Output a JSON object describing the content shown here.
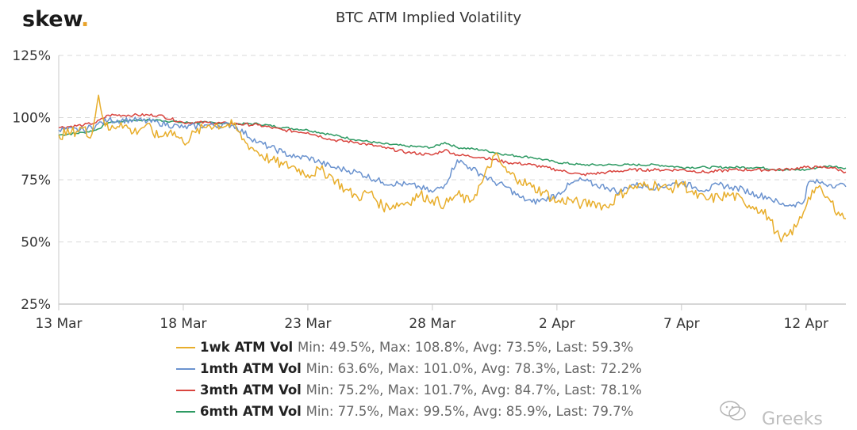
{
  "brand": {
    "name": "skew",
    "dot": ".",
    "dot_color": "#e8a32b"
  },
  "watermark": {
    "text": "Greeks",
    "icon": "wechat-icon"
  },
  "colors": {
    "1wk": "#e8ae2c",
    "1mth": "#6b93cf",
    "3mth": "#d9453f",
    "6mth": "#2e9a63"
  },
  "chart_data": {
    "type": "line",
    "title": "BTC ATM Implied Volatility",
    "xlabel": "",
    "ylabel": "",
    "x_ticks": [
      "13 Mar",
      "18 Mar",
      "23 Mar",
      "28 Mar",
      "2 Apr",
      "7 Apr",
      "12 Apr"
    ],
    "y_ticks": [
      "25%",
      "50%",
      "75%",
      "100%",
      "125%"
    ],
    "ylim": [
      25,
      125
    ],
    "xlim": [
      0,
      30.1
    ],
    "grid": true,
    "legend_position": "bottom",
    "series": [
      {
        "name": "1wk ATM Vol",
        "stats": "Min: 49.5%, Max: 108.8%, Avg: 73.5%, Last: 59.3%",
        "color": "#e8ae2c",
        "points": [
          [
            0,
            93
          ],
          [
            0.5,
            94
          ],
          [
            1,
            96
          ],
          [
            1.2,
            92
          ],
          [
            1.4,
            97
          ],
          [
            1.6,
            109
          ],
          [
            1.8,
            99
          ],
          [
            2,
            95
          ],
          [
            2.5,
            98
          ],
          [
            3,
            94
          ],
          [
            3.5,
            97
          ],
          [
            4,
            92
          ],
          [
            4.5,
            95
          ],
          [
            5,
            90
          ],
          [
            5.5,
            94
          ],
          [
            6,
            97
          ],
          [
            7,
            97
          ],
          [
            7.5,
            90
          ],
          [
            8,
            86
          ],
          [
            8.5,
            83
          ],
          [
            9,
            81
          ],
          [
            9.5,
            80
          ],
          [
            10,
            77
          ],
          [
            10.5,
            79
          ],
          [
            11,
            76
          ],
          [
            11.5,
            71
          ],
          [
            12,
            68
          ],
          [
            12.5,
            70
          ],
          [
            13,
            64
          ],
          [
            14,
            66
          ],
          [
            14.5,
            69
          ],
          [
            15,
            67
          ],
          [
            15.5,
            65
          ],
          [
            16,
            69
          ],
          [
            16.5,
            66
          ],
          [
            17,
            74
          ],
          [
            17.5,
            85
          ],
          [
            18,
            78
          ],
          [
            18.5,
            75
          ],
          [
            19,
            72
          ],
          [
            19.5,
            70
          ],
          [
            20,
            66
          ],
          [
            20.5,
            67
          ],
          [
            21,
            65
          ],
          [
            21.5,
            66
          ],
          [
            22,
            64
          ],
          [
            22.5,
            69
          ],
          [
            23,
            72
          ],
          [
            24,
            73
          ],
          [
            24.5,
            71
          ],
          [
            25,
            74
          ],
          [
            25.5,
            69
          ],
          [
            26,
            67
          ],
          [
            26.5,
            68
          ],
          [
            27,
            69
          ],
          [
            27.5,
            66
          ],
          [
            28,
            64
          ],
          [
            28.5,
            60
          ],
          [
            28.8,
            54
          ],
          [
            29,
            50
          ],
          [
            29.3,
            53
          ],
          [
            29.6,
            56
          ],
          [
            29.9,
            62
          ],
          [
            30.1,
            68
          ],
          [
            30.4,
            72
          ],
          [
            30.7,
            69
          ],
          [
            31,
            66
          ],
          [
            31.3,
            62
          ],
          [
            31.6,
            59.3
          ]
        ]
      },
      {
        "name": "1mth ATM Vol",
        "stats": "Min: 63.6%, Max: 101.0%, Avg: 78.3%, Last: 72.2%",
        "color": "#6b93cf",
        "points": [
          [
            0,
            95
          ],
          [
            1,
            95
          ],
          [
            1.5,
            97
          ],
          [
            2,
            99
          ],
          [
            3,
            99
          ],
          [
            4,
            98
          ],
          [
            5,
            96
          ],
          [
            6,
            97
          ],
          [
            7,
            97
          ],
          [
            8,
            90
          ],
          [
            8.5,
            88
          ],
          [
            9,
            86
          ],
          [
            9.5,
            84
          ],
          [
            10,
            84
          ],
          [
            10.5,
            82
          ],
          [
            11,
            80
          ],
          [
            11.5,
            79
          ],
          [
            12,
            78
          ],
          [
            13,
            74
          ],
          [
            14,
            73
          ],
          [
            14.5,
            72
          ],
          [
            15,
            70
          ],
          [
            15.5,
            73
          ],
          [
            16,
            83
          ],
          [
            16.5,
            80
          ],
          [
            17,
            77
          ],
          [
            17.5,
            74
          ],
          [
            18,
            72
          ],
          [
            18.5,
            68
          ],
          [
            19,
            66
          ],
          [
            19.5,
            67
          ],
          [
            20,
            69
          ],
          [
            20.5,
            73
          ],
          [
            21,
            75
          ],
          [
            21.5,
            73
          ],
          [
            22,
            72
          ],
          [
            22.5,
            70
          ],
          [
            23,
            73
          ],
          [
            24,
            72
          ],
          [
            24.5,
            73
          ],
          [
            25,
            74
          ],
          [
            25.5,
            72
          ],
          [
            26,
            71
          ],
          [
            26.5,
            73
          ],
          [
            27,
            72
          ],
          [
            27.5,
            71
          ],
          [
            28,
            69
          ],
          [
            28.5,
            68
          ],
          [
            29,
            65
          ],
          [
            29.5,
            65
          ],
          [
            29.9,
            66
          ],
          [
            30.1,
            74
          ],
          [
            30.5,
            74
          ],
          [
            31,
            73
          ],
          [
            31.3,
            73
          ],
          [
            31.6,
            72.2
          ]
        ]
      },
      {
        "name": "3mth ATM Vol",
        "stats": "Min: 75.2%, Max: 101.7%, Avg: 84.7%, Last: 78.1%",
        "color": "#d9453f",
        "points": [
          [
            0,
            96
          ],
          [
            1,
            97
          ],
          [
            1.5,
            98
          ],
          [
            2,
            101
          ],
          [
            3,
            101
          ],
          [
            4,
            101
          ],
          [
            5,
            98
          ],
          [
            6,
            98
          ],
          [
            7,
            97.5
          ],
          [
            8,
            97
          ],
          [
            9,
            95
          ],
          [
            10,
            94
          ],
          [
            11,
            91
          ],
          [
            12,
            90
          ],
          [
            13,
            88
          ],
          [
            14,
            86
          ],
          [
            15,
            85
          ],
          [
            15.5,
            87
          ],
          [
            16,
            85
          ],
          [
            17,
            84
          ],
          [
            18,
            82
          ],
          [
            19,
            81
          ],
          [
            20,
            79
          ],
          [
            21,
            77
          ],
          [
            22,
            78
          ],
          [
            23,
            79
          ],
          [
            24,
            79
          ],
          [
            25,
            79
          ],
          [
            26,
            78
          ],
          [
            27,
            79
          ],
          [
            28,
            79
          ],
          [
            29,
            79
          ],
          [
            30,
            80
          ],
          [
            30.5,
            80
          ],
          [
            31,
            80
          ],
          [
            31.6,
            78.1
          ]
        ]
      },
      {
        "name": "6mth ATM Vol",
        "stats": "Min: 77.5%, Max: 99.5%, Avg: 85.9%, Last: 79.7%",
        "color": "#2e9a63",
        "points": [
          [
            0,
            93
          ],
          [
            1,
            94
          ],
          [
            1.5,
            95
          ],
          [
            2,
            98
          ],
          [
            3,
            99
          ],
          [
            4,
            99
          ],
          [
            5,
            98
          ],
          [
            6,
            98
          ],
          [
            7,
            97.5
          ],
          [
            8,
            97.5
          ],
          [
            9,
            96
          ],
          [
            10,
            95
          ],
          [
            11,
            93
          ],
          [
            12,
            91
          ],
          [
            13,
            89.5
          ],
          [
            14,
            88.5
          ],
          [
            15,
            88
          ],
          [
            15.5,
            90
          ],
          [
            16,
            88
          ],
          [
            17,
            87
          ],
          [
            18,
            85
          ],
          [
            19,
            84
          ],
          [
            20,
            82
          ],
          [
            21,
            81
          ],
          [
            22,
            81
          ],
          [
            23,
            81
          ],
          [
            24,
            81
          ],
          [
            25,
            80
          ],
          [
            26,
            80
          ],
          [
            27,
            80
          ],
          [
            28,
            80
          ],
          [
            29,
            79
          ],
          [
            30,
            79
          ],
          [
            30.5,
            80
          ],
          [
            31,
            80.5
          ],
          [
            31.6,
            79.7
          ]
        ]
      }
    ]
  }
}
